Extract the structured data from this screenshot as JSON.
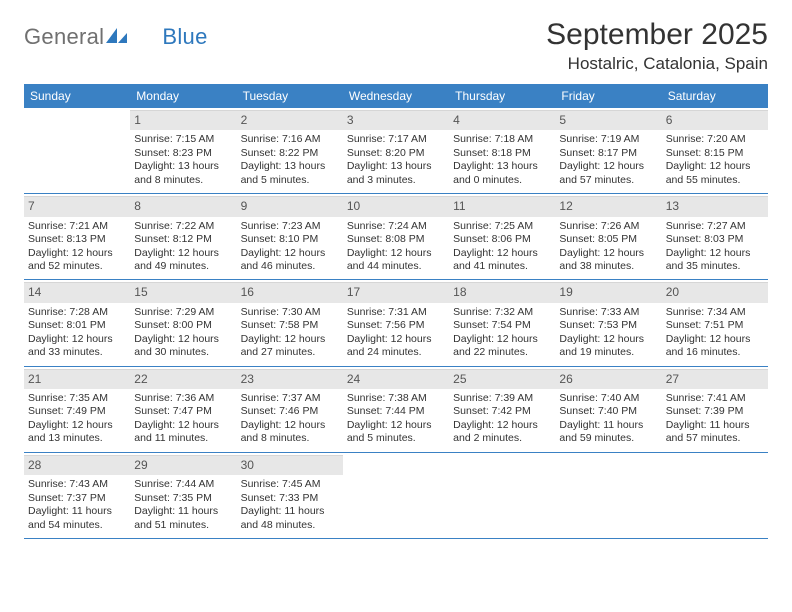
{
  "logo": {
    "text1": "General",
    "text2": "Blue"
  },
  "title": "September 2025",
  "location": "Hostalric, Catalonia, Spain",
  "colors": {
    "header_bg": "#3a81c4",
    "header_text": "#ffffff",
    "daynum_bg": "#e7e7e7",
    "week_border": "#3a81c4",
    "logo_gray": "#707070",
    "logo_blue": "#2e78bd",
    "text": "#333333"
  },
  "dow": [
    "Sunday",
    "Monday",
    "Tuesday",
    "Wednesday",
    "Thursday",
    "Friday",
    "Saturday"
  ],
  "weeks": [
    [
      {
        "n": "",
        "sunrise": "",
        "sunset": "",
        "daylight": ""
      },
      {
        "n": "1",
        "sunrise": "Sunrise: 7:15 AM",
        "sunset": "Sunset: 8:23 PM",
        "daylight": "Daylight: 13 hours and 8 minutes."
      },
      {
        "n": "2",
        "sunrise": "Sunrise: 7:16 AM",
        "sunset": "Sunset: 8:22 PM",
        "daylight": "Daylight: 13 hours and 5 minutes."
      },
      {
        "n": "3",
        "sunrise": "Sunrise: 7:17 AM",
        "sunset": "Sunset: 8:20 PM",
        "daylight": "Daylight: 13 hours and 3 minutes."
      },
      {
        "n": "4",
        "sunrise": "Sunrise: 7:18 AM",
        "sunset": "Sunset: 8:18 PM",
        "daylight": "Daylight: 13 hours and 0 minutes."
      },
      {
        "n": "5",
        "sunrise": "Sunrise: 7:19 AM",
        "sunset": "Sunset: 8:17 PM",
        "daylight": "Daylight: 12 hours and 57 minutes."
      },
      {
        "n": "6",
        "sunrise": "Sunrise: 7:20 AM",
        "sunset": "Sunset: 8:15 PM",
        "daylight": "Daylight: 12 hours and 55 minutes."
      }
    ],
    [
      {
        "n": "7",
        "sunrise": "Sunrise: 7:21 AM",
        "sunset": "Sunset: 8:13 PM",
        "daylight": "Daylight: 12 hours and 52 minutes."
      },
      {
        "n": "8",
        "sunrise": "Sunrise: 7:22 AM",
        "sunset": "Sunset: 8:12 PM",
        "daylight": "Daylight: 12 hours and 49 minutes."
      },
      {
        "n": "9",
        "sunrise": "Sunrise: 7:23 AM",
        "sunset": "Sunset: 8:10 PM",
        "daylight": "Daylight: 12 hours and 46 minutes."
      },
      {
        "n": "10",
        "sunrise": "Sunrise: 7:24 AM",
        "sunset": "Sunset: 8:08 PM",
        "daylight": "Daylight: 12 hours and 44 minutes."
      },
      {
        "n": "11",
        "sunrise": "Sunrise: 7:25 AM",
        "sunset": "Sunset: 8:06 PM",
        "daylight": "Daylight: 12 hours and 41 minutes."
      },
      {
        "n": "12",
        "sunrise": "Sunrise: 7:26 AM",
        "sunset": "Sunset: 8:05 PM",
        "daylight": "Daylight: 12 hours and 38 minutes."
      },
      {
        "n": "13",
        "sunrise": "Sunrise: 7:27 AM",
        "sunset": "Sunset: 8:03 PM",
        "daylight": "Daylight: 12 hours and 35 minutes."
      }
    ],
    [
      {
        "n": "14",
        "sunrise": "Sunrise: 7:28 AM",
        "sunset": "Sunset: 8:01 PM",
        "daylight": "Daylight: 12 hours and 33 minutes."
      },
      {
        "n": "15",
        "sunrise": "Sunrise: 7:29 AM",
        "sunset": "Sunset: 8:00 PM",
        "daylight": "Daylight: 12 hours and 30 minutes."
      },
      {
        "n": "16",
        "sunrise": "Sunrise: 7:30 AM",
        "sunset": "Sunset: 7:58 PM",
        "daylight": "Daylight: 12 hours and 27 minutes."
      },
      {
        "n": "17",
        "sunrise": "Sunrise: 7:31 AM",
        "sunset": "Sunset: 7:56 PM",
        "daylight": "Daylight: 12 hours and 24 minutes."
      },
      {
        "n": "18",
        "sunrise": "Sunrise: 7:32 AM",
        "sunset": "Sunset: 7:54 PM",
        "daylight": "Daylight: 12 hours and 22 minutes."
      },
      {
        "n": "19",
        "sunrise": "Sunrise: 7:33 AM",
        "sunset": "Sunset: 7:53 PM",
        "daylight": "Daylight: 12 hours and 19 minutes."
      },
      {
        "n": "20",
        "sunrise": "Sunrise: 7:34 AM",
        "sunset": "Sunset: 7:51 PM",
        "daylight": "Daylight: 12 hours and 16 minutes."
      }
    ],
    [
      {
        "n": "21",
        "sunrise": "Sunrise: 7:35 AM",
        "sunset": "Sunset: 7:49 PM",
        "daylight": "Daylight: 12 hours and 13 minutes."
      },
      {
        "n": "22",
        "sunrise": "Sunrise: 7:36 AM",
        "sunset": "Sunset: 7:47 PM",
        "daylight": "Daylight: 12 hours and 11 minutes."
      },
      {
        "n": "23",
        "sunrise": "Sunrise: 7:37 AM",
        "sunset": "Sunset: 7:46 PM",
        "daylight": "Daylight: 12 hours and 8 minutes."
      },
      {
        "n": "24",
        "sunrise": "Sunrise: 7:38 AM",
        "sunset": "Sunset: 7:44 PM",
        "daylight": "Daylight: 12 hours and 5 minutes."
      },
      {
        "n": "25",
        "sunrise": "Sunrise: 7:39 AM",
        "sunset": "Sunset: 7:42 PM",
        "daylight": "Daylight: 12 hours and 2 minutes."
      },
      {
        "n": "26",
        "sunrise": "Sunrise: 7:40 AM",
        "sunset": "Sunset: 7:40 PM",
        "daylight": "Daylight: 11 hours and 59 minutes."
      },
      {
        "n": "27",
        "sunrise": "Sunrise: 7:41 AM",
        "sunset": "Sunset: 7:39 PM",
        "daylight": "Daylight: 11 hours and 57 minutes."
      }
    ],
    [
      {
        "n": "28",
        "sunrise": "Sunrise: 7:43 AM",
        "sunset": "Sunset: 7:37 PM",
        "daylight": "Daylight: 11 hours and 54 minutes."
      },
      {
        "n": "29",
        "sunrise": "Sunrise: 7:44 AM",
        "sunset": "Sunset: 7:35 PM",
        "daylight": "Daylight: 11 hours and 51 minutes."
      },
      {
        "n": "30",
        "sunrise": "Sunrise: 7:45 AM",
        "sunset": "Sunset: 7:33 PM",
        "daylight": "Daylight: 11 hours and 48 minutes."
      },
      {
        "n": "",
        "sunrise": "",
        "sunset": "",
        "daylight": ""
      },
      {
        "n": "",
        "sunrise": "",
        "sunset": "",
        "daylight": ""
      },
      {
        "n": "",
        "sunrise": "",
        "sunset": "",
        "daylight": ""
      },
      {
        "n": "",
        "sunrise": "",
        "sunset": "",
        "daylight": ""
      }
    ]
  ]
}
